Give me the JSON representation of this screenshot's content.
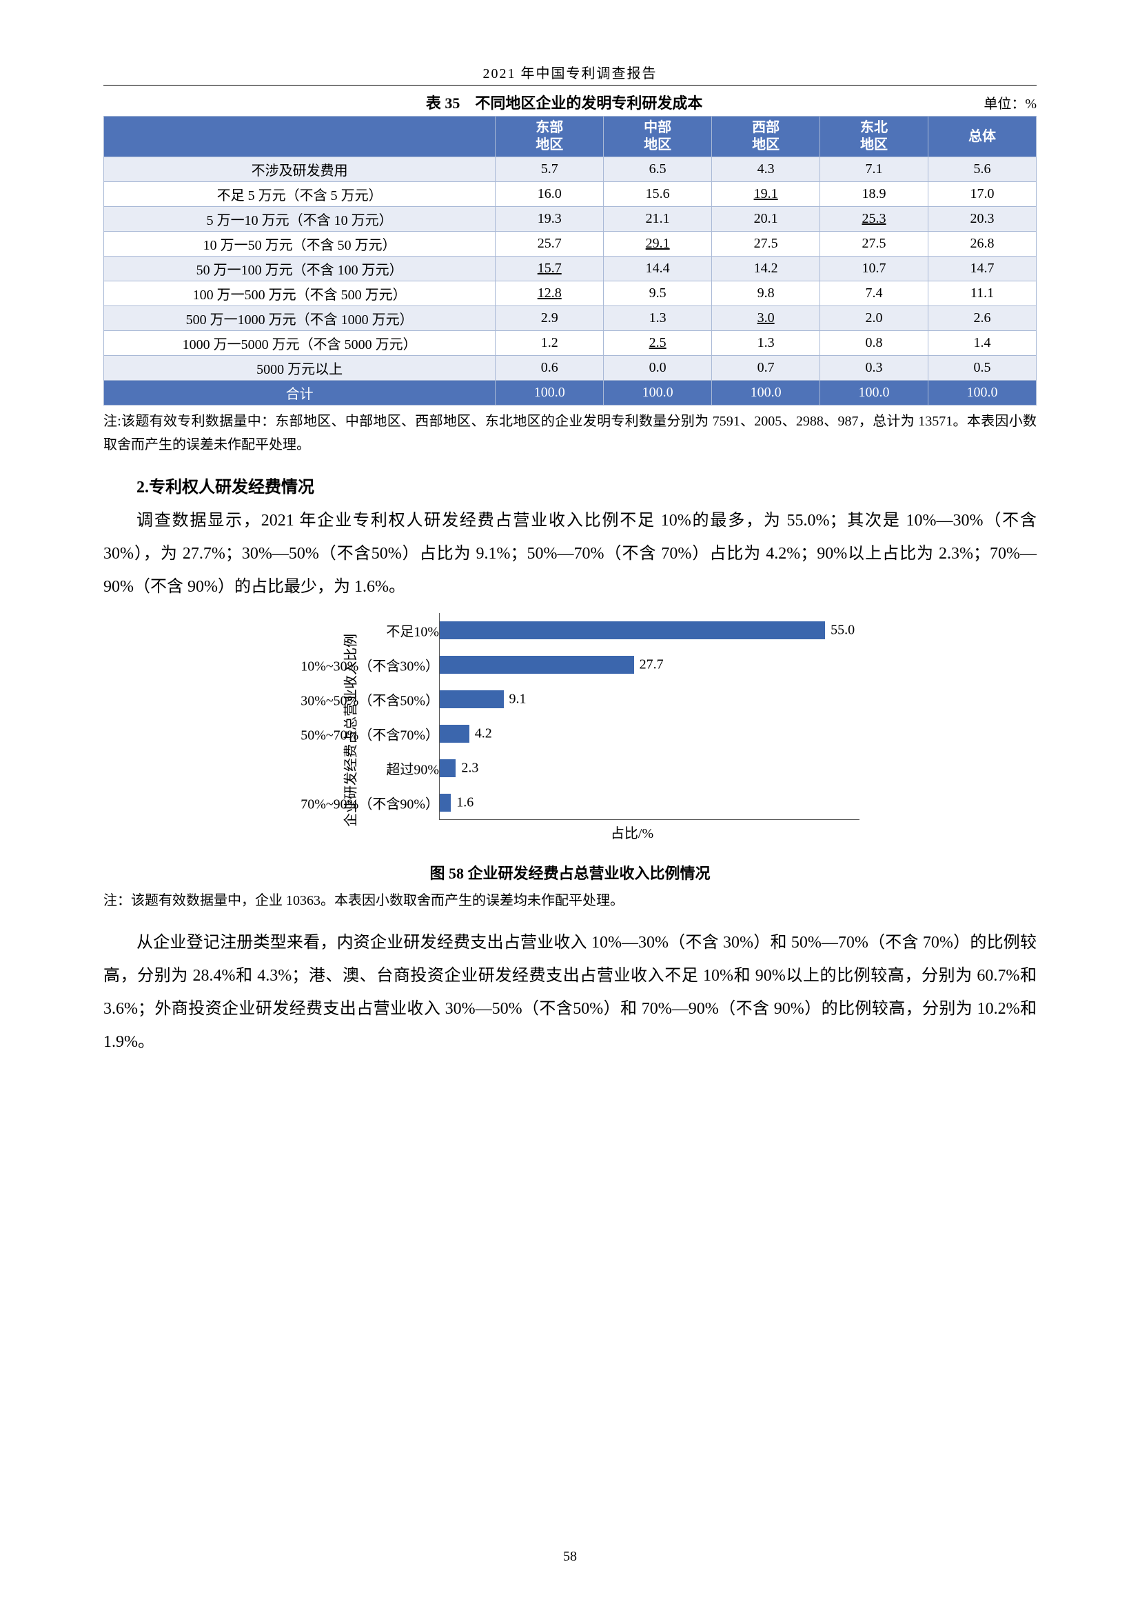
{
  "doc_title": "2021 年中国专利调查报告",
  "page_number": "58",
  "table": {
    "number": "表 35",
    "title": "不同地区企业的发明专利研发成本",
    "unit": "单位：%",
    "headers": [
      "",
      "东部\n地区",
      "中部\n地区",
      "西部\n地区",
      "东北\n地区",
      "总体"
    ],
    "rows": [
      {
        "label": "不涉及研发费用",
        "cells": [
          "5.7",
          "6.5",
          "4.3",
          "7.1",
          "5.6"
        ],
        "u": []
      },
      {
        "label": "不足 5 万元（不含 5 万元）",
        "cells": [
          "16.0",
          "15.6",
          "19.1",
          "18.9",
          "17.0"
        ],
        "u": [
          2
        ]
      },
      {
        "label": "5 万一10 万元（不含 10 万元）",
        "cells": [
          "19.3",
          "21.1",
          "20.1",
          "25.3",
          "20.3"
        ],
        "u": [
          3
        ]
      },
      {
        "label": "10 万一50 万元（不含 50 万元）",
        "cells": [
          "25.7",
          "29.1",
          "27.5",
          "27.5",
          "26.8"
        ],
        "u": [
          1
        ]
      },
      {
        "label": "50 万一100 万元（不含 100 万元）",
        "cells": [
          "15.7",
          "14.4",
          "14.2",
          "10.7",
          "14.7"
        ],
        "u": [
          0
        ]
      },
      {
        "label": "100 万一500 万元（不含 500 万元）",
        "cells": [
          "12.8",
          "9.5",
          "9.8",
          "7.4",
          "11.1"
        ],
        "u": [
          0
        ]
      },
      {
        "label": "500 万一1000 万元（不含 1000 万元）",
        "cells": [
          "2.9",
          "1.3",
          "3.0",
          "2.0",
          "2.6"
        ],
        "u": [
          2
        ]
      },
      {
        "label": "1000 万一5000 万元（不含 5000 万元）",
        "cells": [
          "1.2",
          "2.5",
          "1.3",
          "0.8",
          "1.4"
        ],
        "u": [
          1
        ]
      },
      {
        "label": "5000 万元以上",
        "cells": [
          "0.6",
          "0.0",
          "0.7",
          "0.3",
          "0.5"
        ],
        "u": []
      }
    ],
    "total": {
      "label": "合计",
      "cells": [
        "100.0",
        "100.0",
        "100.0",
        "100.0",
        "100.0"
      ]
    },
    "note": "注:该题有效专利数据量中：东部地区、中部地区、西部地区、东北地区的企业发明专利数量分别为 7591、2005、2988、987，总计为 13571。本表因小数取舍而产生的误差未作配平处理。"
  },
  "section_heading": "2.专利权人研发经费情况",
  "para1": "调查数据显示，2021 年企业专利权人研发经费占营业收入比例不足 10%的最多，为 55.0%；其次是 10%—30%（不含 30%），为 27.7%；30%—50%（不含50%）占比为 9.1%；50%—70%（不含 70%）占比为 4.2%；90%以上占比为 2.3%；70%—90%（不含 90%）的占比最少，为 1.6%。",
  "chart": {
    "type": "bar-horizontal",
    "ylabel": "企业研发经费占总营业收入\n比例",
    "xlabel": "占比/%",
    "xmax": 60,
    "bar_color": "#3b66ad",
    "categories": [
      "不足10%",
      "10%~30%（不含30%）",
      "30%~50%（不含50%）",
      "50%~70%（不含70%）",
      "超过90%",
      "70%~90%（不含90%）"
    ],
    "values": [
      55.0,
      27.7,
      9.1,
      4.2,
      2.3,
      1.6
    ],
    "caption": "图 58  企业研发经费占总营业收入比例情况",
    "note": "注：该题有效数据量中，企业 10363。本表因小数取舍而产生的误差均未作配平处理。"
  },
  "para2": "从企业登记注册类型来看，内资企业研发经费支出占营业收入 10%—30%（不含 30%）和 50%—70%（不含 70%）的比例较高，分别为 28.4%和 4.3%；港、澳、台商投资企业研发经费支出占营业收入不足 10%和 90%以上的比例较高，分别为 60.7%和 3.6%；外商投资企业研发经费支出占营业收入 30%—50%（不含50%）和 70%—90%（不含 90%）的比例较高，分别为 10.2%和 1.9%。"
}
